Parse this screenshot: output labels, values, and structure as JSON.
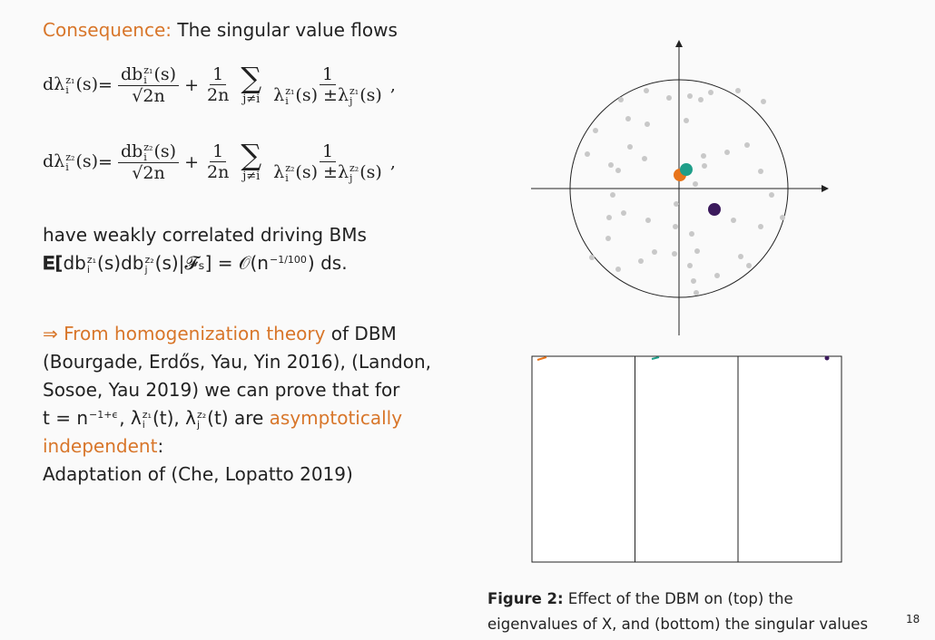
{
  "heading": {
    "label": "Consequence:",
    "text": "The singular value flows"
  },
  "equations": [
    {
      "lhs": [
        {
          "base": "dλ",
          "sup": "z₁",
          "sub": "i",
          "rest": "(s)"
        },
        "="
      ],
      "f1": {
        "num": [
          {
            "base": "db",
            "sup": "z₁",
            "sub": "i",
            "rest": "(s)"
          }
        ],
        "den": [
          "√2n"
        ]
      },
      "plus": "+",
      "f2": {
        "num": [
          "1"
        ],
        "den": [
          "2n"
        ]
      },
      "sum": "∑",
      "sum_sub": "j≠i",
      "f3": {
        "num": [
          "1"
        ],
        "den": [
          {
            "base": "λ",
            "sup": "z₁",
            "sub": "i",
            "rest": "(s) ±"
          },
          {
            "base": "λ",
            "sup": "z₁",
            "sub": "j",
            "rest": "(s)"
          }
        ]
      },
      "comma": ","
    },
    {
      "lhs": [
        {
          "base": "dλ",
          "sup": "z₂",
          "sub": "i",
          "rest": "(s)"
        },
        "="
      ],
      "f1": {
        "num": [
          {
            "base": "db",
            "sup": "z₂",
            "sub": "i",
            "rest": "(s)"
          }
        ],
        "den": [
          "√2n"
        ]
      },
      "plus": "+",
      "f2": {
        "num": [
          "1"
        ],
        "den": [
          "2n"
        ]
      },
      "sum": "∑",
      "sum_sub": "j≠i",
      "f3": {
        "num": [
          "1"
        ],
        "den": [
          {
            "base": "λ",
            "sup": "z₂",
            "sub": "i",
            "rest": "(s) ±"
          },
          {
            "base": "λ",
            "sup": "z₂",
            "sub": "j",
            "rest": "(s)"
          }
        ]
      },
      "comma": ","
    }
  ],
  "paragraph1": [
    [
      {
        "text": "have weakly correlated driving BMs"
      }
    ],
    [
      {
        "text": "𝐄[",
        "bold": true
      },
      {
        "base": "db",
        "sup": "z₁",
        "sub": "i",
        "rest": "(s)"
      },
      {
        "base": "db",
        "sup": "z₂",
        "sub": "j",
        "rest": "(s)"
      },
      {
        "text": "|𝓕ₛ] = 𝒪(n"
      },
      {
        "base": "",
        "sup": "−1/100",
        "sub": "",
        "rest": ") ds."
      }
    ]
  ],
  "paragraph2": [
    [
      {
        "text": "⇒ From ",
        "accent": true
      },
      {
        "text": "homogenization theory",
        "accent": true
      },
      {
        "text": " of DBM"
      }
    ],
    [
      {
        "text": "(Bourgade, Erdős, Yau, Yin 2016), (Landon,"
      }
    ],
    [
      {
        "text": "Sosoe, Yau 2019) we can prove that for"
      }
    ],
    [
      {
        "base": "t = n",
        "sup": "−1+ϵ",
        "sub": "",
        "rest": ","
      },
      {
        "base": " λ",
        "sup": "z₁",
        "sub": "i",
        "rest": "(t),"
      },
      {
        "base": " λ",
        "sup": "z₂",
        "sub": "j",
        "rest": "(t) are "
      },
      {
        "text": "asymptotically",
        "accent": true
      }
    ],
    [
      {
        "text": "independent",
        "accent": true
      },
      {
        "text": ":"
      }
    ],
    [
      {
        "text": "Adaptation of (Che, Lopatto 2019)"
      }
    ]
  ],
  "caption": {
    "label": "Figure 2:",
    "text": "Effect of the DBM on (top) the eigenvalues of X, and (bottom) the singular values of X − z"
  },
  "page_number": "18"
}
